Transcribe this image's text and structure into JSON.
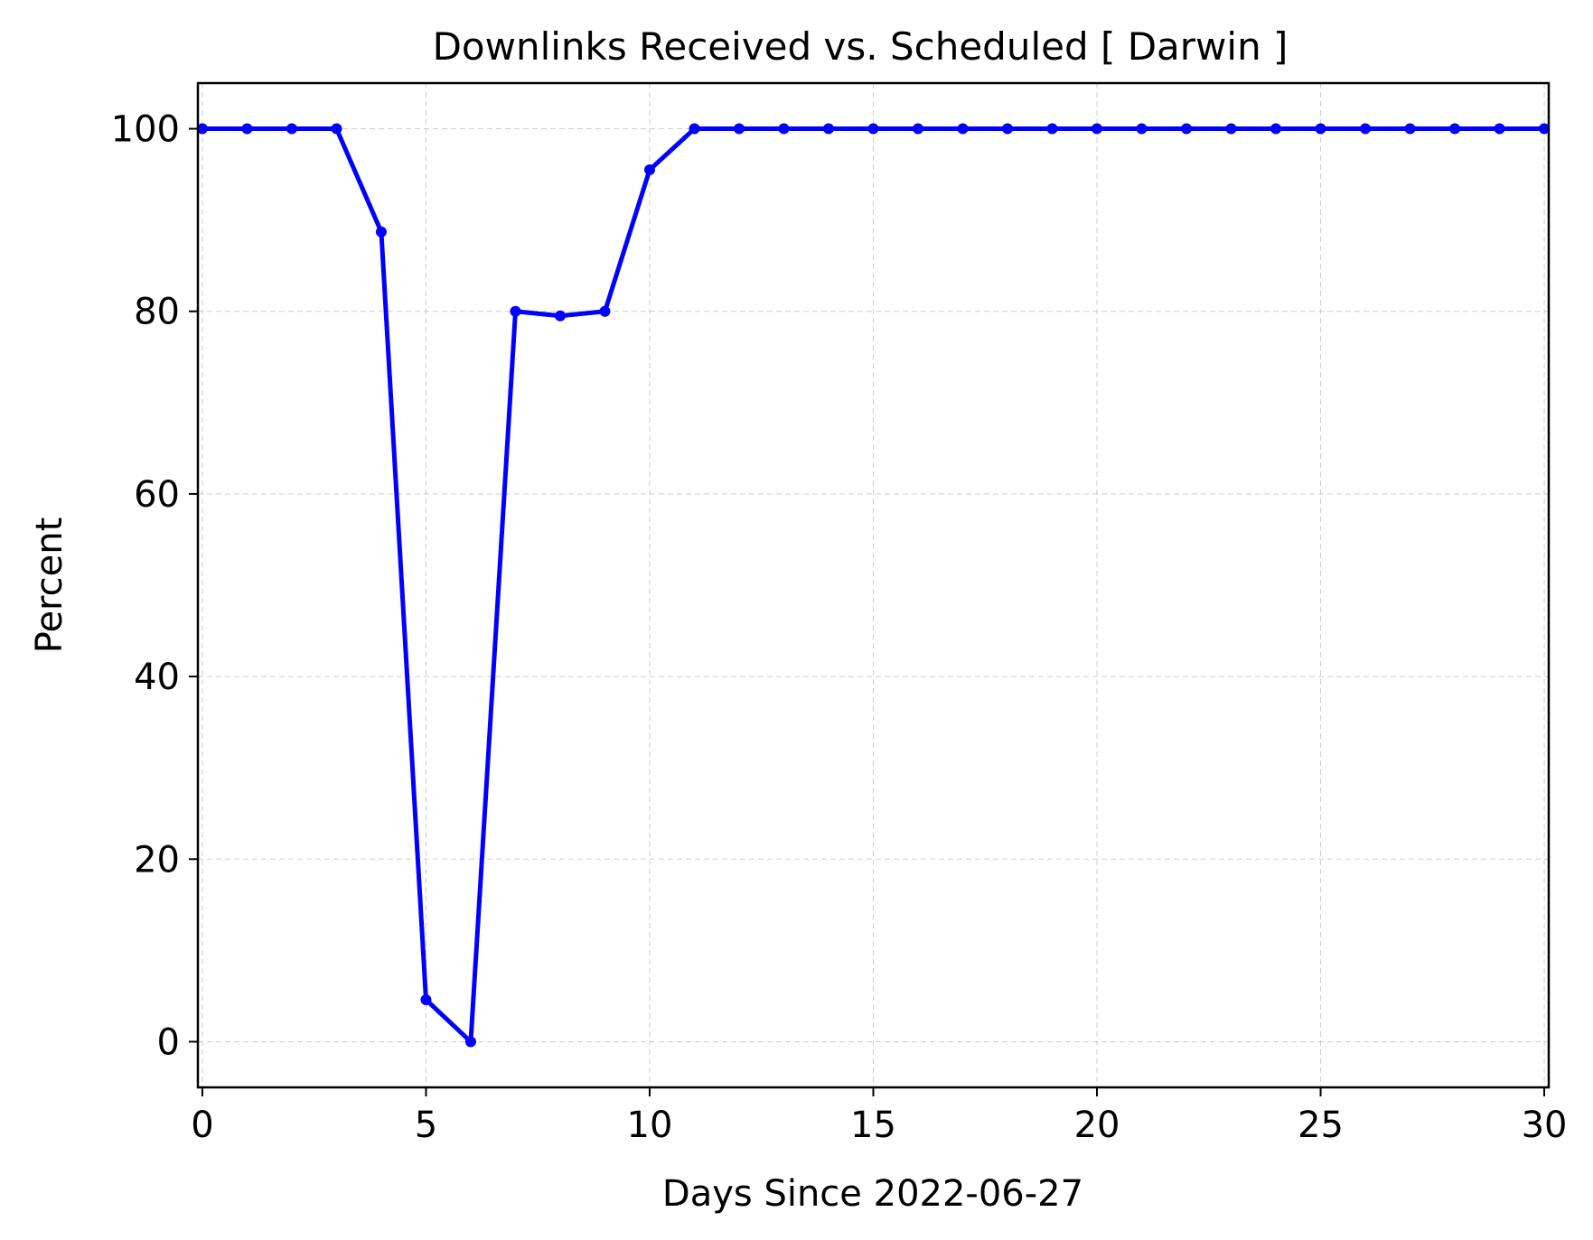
{
  "chart_data": {
    "type": "line",
    "title": "Downlinks Received vs. Scheduled [ Darwin ]",
    "xlabel": "Days Since 2022-06-27",
    "ylabel": "Percent",
    "xlim": [
      -0.1,
      30.1
    ],
    "ylim": [
      -5,
      105
    ],
    "xticks": [
      0,
      5,
      10,
      15,
      20,
      25,
      30
    ],
    "yticks": [
      0,
      20,
      40,
      60,
      80,
      100
    ],
    "grid": true,
    "legend": "none",
    "series": [
      {
        "color": "#0000ff",
        "x": [
          0,
          1,
          2,
          3,
          4,
          5,
          6,
          7,
          8,
          9,
          10,
          11,
          12,
          13,
          14,
          15,
          16,
          17,
          18,
          19,
          20,
          21,
          22,
          23,
          24,
          25,
          26,
          27,
          28,
          29,
          30
        ],
        "y": [
          100,
          100,
          100,
          100,
          88.7,
          4.6,
          0,
          80,
          79.5,
          80,
          95.5,
          100,
          100,
          100,
          100,
          100,
          100,
          100,
          100,
          100,
          100,
          100,
          100,
          100,
          100,
          100,
          100,
          100,
          100,
          100,
          100
        ]
      }
    ]
  }
}
